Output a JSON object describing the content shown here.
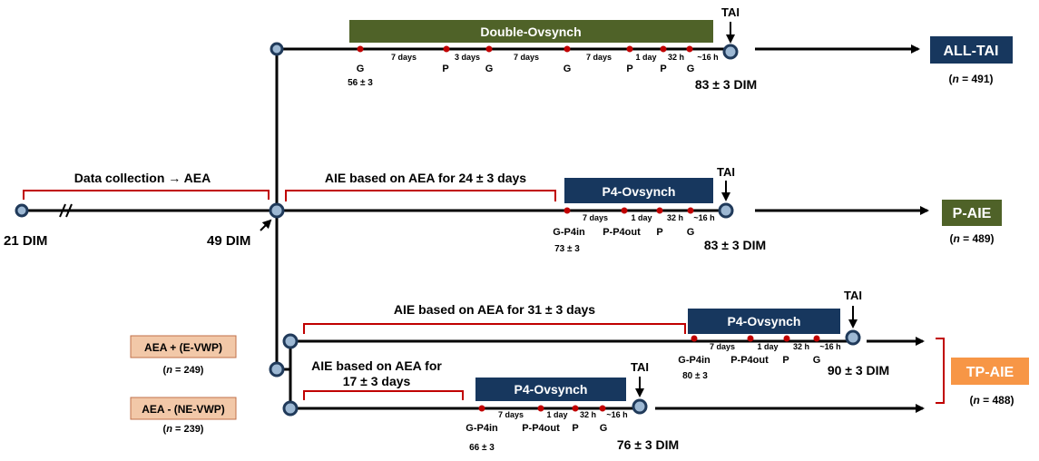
{
  "colors": {
    "line": "#000000",
    "node_fill": "#9db8d3",
    "node_stroke": "#203a5a",
    "red": "#c00000",
    "green_box": "#4f6228",
    "navy_box": "#17375e",
    "orange_box": "#f79646",
    "pink_box": "#f2c8a8",
    "pink_stroke": "#c0704a"
  },
  "timeline": {
    "start_dim": "21 DIM",
    "split_dim": "49 DIM",
    "data_collection": "Data collection → AEA"
  },
  "top": {
    "program": "Double-Ovsynch",
    "tai": "TAI",
    "ticks": [
      "G",
      "P",
      "G",
      "G",
      "P",
      "P",
      "G"
    ],
    "intervals": [
      "7 days",
      "3 days",
      "7 days",
      "7 days",
      "1 day",
      "32 h",
      "~16 h"
    ],
    "start_dim": "56 ± 3",
    "end_dim": "83 ± 3 DIM",
    "group": "ALL-TAI",
    "n_prefix": "(",
    "n_var": "n",
    "n_value": " = 491)"
  },
  "middle": {
    "aie_text": "AIE based on AEA for 24 ± 3 days",
    "program": "P4-Ovsynch",
    "tai": "TAI",
    "ticks": [
      "G-P4in",
      "P-P4out",
      "P",
      "G"
    ],
    "intervals": [
      "7 days",
      "1 day",
      "32 h",
      "~16 h"
    ],
    "start_dim": "73 ± 3",
    "end_dim": "83 ± 3 DIM",
    "group": "P-AIE",
    "n_prefix": "(",
    "n_var": "n",
    "n_value": " = 489)"
  },
  "bottom_upper": {
    "aie_text": "AIE based on AEA for 31 ± 3 days",
    "program": "P4-Ovsynch",
    "tai": "TAI",
    "ticks": [
      "G-P4in",
      "P-P4out",
      "P",
      "G"
    ],
    "intervals": [
      "7 days",
      "1 day",
      "32 h",
      "~16 h"
    ],
    "start_dim": "80 ± 3",
    "end_dim": "90 ± 3 DIM",
    "label": "AEA + (E-VWP)",
    "n_prefix": "(",
    "n_var": "n",
    "n_value": " = 249)"
  },
  "bottom_lower": {
    "aie_text_1": "AIE based on AEA for",
    "aie_text_2": "17 ± 3 days",
    "program": "P4-Ovsynch",
    "tai": "TAI",
    "ticks": [
      "G-P4in",
      "P-P4out",
      "P",
      "G"
    ],
    "intervals": [
      "7 days",
      "1 day",
      "32 h",
      "~16 h"
    ],
    "start_dim": "66 ± 3",
    "end_dim": "76 ± 3 DIM",
    "label": "AEA - (NE-VWP)",
    "n_prefix": "(",
    "n_var": "n",
    "n_value": " = 239)"
  },
  "tp_group": {
    "group": "TP-AIE",
    "n_prefix": "(",
    "n_var": "n",
    "n_value": " = 488)"
  }
}
